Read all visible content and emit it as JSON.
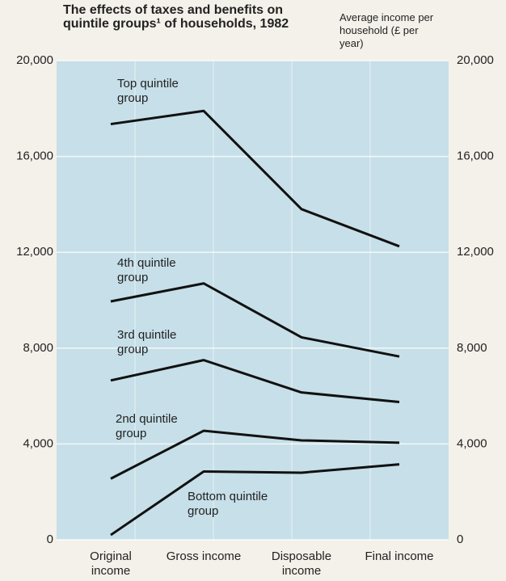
{
  "chart_data": {
    "type": "line",
    "title": "The effects of taxes and benefits on quintile groups¹ of households, 1982",
    "y_axis_label": "Average income per household (£ per year)",
    "categories": [
      "Original income",
      "Gross income",
      "Disposable income",
      "Final income"
    ],
    "series": [
      {
        "name": "Top quintile group",
        "color": "#111111",
        "values": [
          17350,
          17900,
          13800,
          12250
        ]
      },
      {
        "name": "4th quintile group",
        "color": "#111111",
        "values": [
          9950,
          10700,
          8450,
          7650
        ]
      },
      {
        "name": "3rd quintile group",
        "color": "#111111",
        "values": [
          6650,
          7500,
          6150,
          5750
        ]
      },
      {
        "name": "2nd quintile group",
        "color": "#111111",
        "values": [
          2550,
          4550,
          4150,
          4050
        ]
      },
      {
        "name": "Bottom quintile group",
        "color": "#111111",
        "values": [
          200,
          2850,
          2800,
          3150
        ]
      }
    ],
    "ylim": [
      0,
      20000
    ],
    "yticks": [
      0,
      {
        "value": 4000,
        "label": "4,000"
      },
      {
        "value": 8000,
        "label": "8,000"
      },
      {
        "value": 12000,
        "label": "12,000"
      },
      {
        "value": 16000,
        "label": "16,000"
      },
      {
        "value": 20000,
        "label": "20,000"
      }
    ],
    "grid": true,
    "background": "#c6dfe8"
  }
}
